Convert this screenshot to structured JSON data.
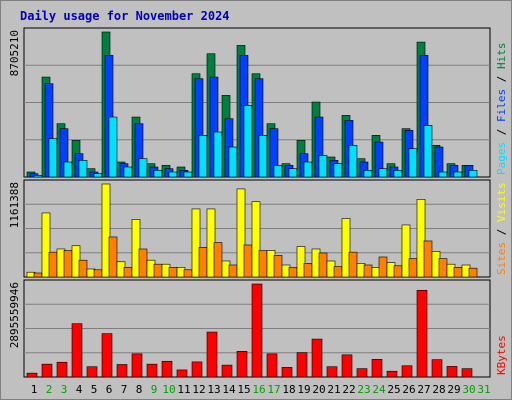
{
  "title": "Daily usage for November 2024",
  "colors": {
    "background": "#c0c0c0",
    "title": "#0000c0",
    "hits": "#008040",
    "files": "#0040ff",
    "pages": "#00e0ff",
    "visits": "#ffff00",
    "sites": "#ff8000",
    "kbytes": "#ff0000",
    "weekend_day": "#00a000",
    "weekday": "#000000"
  },
  "chart_data": [
    {
      "type": "bar",
      "title": "Daily usage for November 2024",
      "categories": [
        "1",
        "2",
        "3",
        "4",
        "5",
        "6",
        "7",
        "8",
        "9",
        "10",
        "11",
        "12",
        "13",
        "14",
        "15",
        "16",
        "17",
        "18",
        "19",
        "20",
        "21",
        "22",
        "23",
        "24",
        "25",
        "26",
        "27",
        "28",
        "29",
        "30",
        "31"
      ],
      "weekend_days": [
        "2",
        "3",
        "9",
        "10",
        "16",
        "17",
        "23",
        "24",
        "30",
        "31"
      ],
      "ymax_label": "8705210",
      "ymax": 8705210,
      "series": [
        {
          "name": "Hits",
          "values": [
            300000,
            6000000,
            3200000,
            2200000,
            500000,
            8705210,
            900000,
            3600000,
            800000,
            700000,
            600000,
            6200000,
            7400000,
            4900000,
            7900000,
            6200000,
            3200000,
            800000,
            2200000,
            4500000,
            1200000,
            3700000,
            1100000,
            2500000,
            800000,
            2900000,
            8100000,
            1900000,
            800000,
            700000,
            0
          ]
        },
        {
          "name": "Files",
          "values": [
            200000,
            5600000,
            2900000,
            1400000,
            300000,
            7300000,
            800000,
            3200000,
            600000,
            500000,
            400000,
            5900000,
            6000000,
            3500000,
            7300000,
            5900000,
            2900000,
            700000,
            1400000,
            3600000,
            1000000,
            3400000,
            900000,
            2100000,
            600000,
            2800000,
            7300000,
            1800000,
            700000,
            700000,
            0
          ]
        },
        {
          "name": "Pages",
          "values": [
            100000,
            2300000,
            900000,
            1000000,
            200000,
            3600000,
            600000,
            1100000,
            400000,
            300000,
            300000,
            2500000,
            2700000,
            1800000,
            4300000,
            2500000,
            700000,
            500000,
            900000,
            1300000,
            800000,
            1900000,
            400000,
            500000,
            400000,
            1700000,
            3100000,
            300000,
            300000,
            400000,
            0
          ]
        }
      ]
    },
    {
      "type": "bar",
      "categories": [
        "1",
        "2",
        "3",
        "4",
        "5",
        "6",
        "7",
        "8",
        "9",
        "10",
        "11",
        "12",
        "13",
        "14",
        "15",
        "16",
        "17",
        "18",
        "19",
        "20",
        "21",
        "22",
        "23",
        "24",
        "25",
        "26",
        "27",
        "28",
        "29",
        "30",
        "31"
      ],
      "ymax_label": "1161388",
      "ymax": 1161388,
      "series": [
        {
          "name": "Visits",
          "values": [
            60000,
            800000,
            350000,
            390000,
            100000,
            1161388,
            190000,
            720000,
            210000,
            160000,
            120000,
            850000,
            850000,
            200000,
            1100000,
            940000,
            330000,
            150000,
            380000,
            350000,
            200000,
            730000,
            170000,
            120000,
            180000,
            650000,
            970000,
            320000,
            160000,
            150000,
            0
          ]
        },
        {
          "name": "Sites",
          "values": [
            50000,
            310000,
            330000,
            210000,
            90000,
            500000,
            120000,
            350000,
            160000,
            120000,
            90000,
            370000,
            430000,
            150000,
            400000,
            330000,
            270000,
            120000,
            170000,
            300000,
            130000,
            310000,
            150000,
            250000,
            140000,
            230000,
            450000,
            230000,
            120000,
            110000,
            0
          ]
        }
      ]
    },
    {
      "type": "bar",
      "categories": [
        "1",
        "2",
        "3",
        "4",
        "5",
        "6",
        "7",
        "8",
        "9",
        "10",
        "11",
        "12",
        "13",
        "14",
        "15",
        "16",
        "17",
        "18",
        "19",
        "20",
        "21",
        "22",
        "23",
        "24",
        "25",
        "26",
        "27",
        "28",
        "29",
        "30",
        "31"
      ],
      "ymax_label": "2895559946",
      "ymax": 2895559946,
      "series": [
        {
          "name": "KBytes",
          "values": [
            120000000,
            400000000,
            460000000,
            1660000000,
            320000000,
            1350000000,
            390000000,
            720000000,
            400000000,
            490000000,
            220000000,
            470000000,
            1400000000,
            370000000,
            800000000,
            2895559946,
            720000000,
            300000000,
            760000000,
            1180000000,
            320000000,
            690000000,
            260000000,
            550000000,
            180000000,
            350000000,
            2700000000,
            540000000,
            330000000,
            260000000,
            0
          ]
        }
      ]
    }
  ]
}
